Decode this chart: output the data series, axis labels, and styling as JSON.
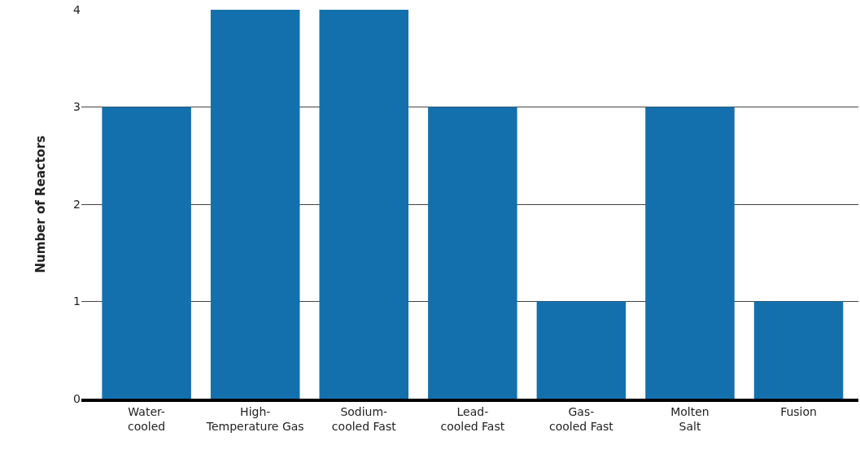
{
  "chart_data": {
    "type": "bar",
    "ylabel": "Number of Reactors",
    "categories": [
      "Water-\ncooled",
      "High-\nTemperature Gas",
      "Sodium-\ncooled Fast",
      "Lead-\ncooled Fast",
      "Gas-\ncooled Fast",
      "Molten\nSalt",
      "Fusion"
    ],
    "values": [
      3,
      4,
      4,
      3,
      1,
      3,
      1
    ],
    "color": "#1470ad",
    "ylim": [
      0,
      4
    ],
    "yticks": [
      0,
      1,
      2,
      3,
      4
    ],
    "grid": "y"
  }
}
